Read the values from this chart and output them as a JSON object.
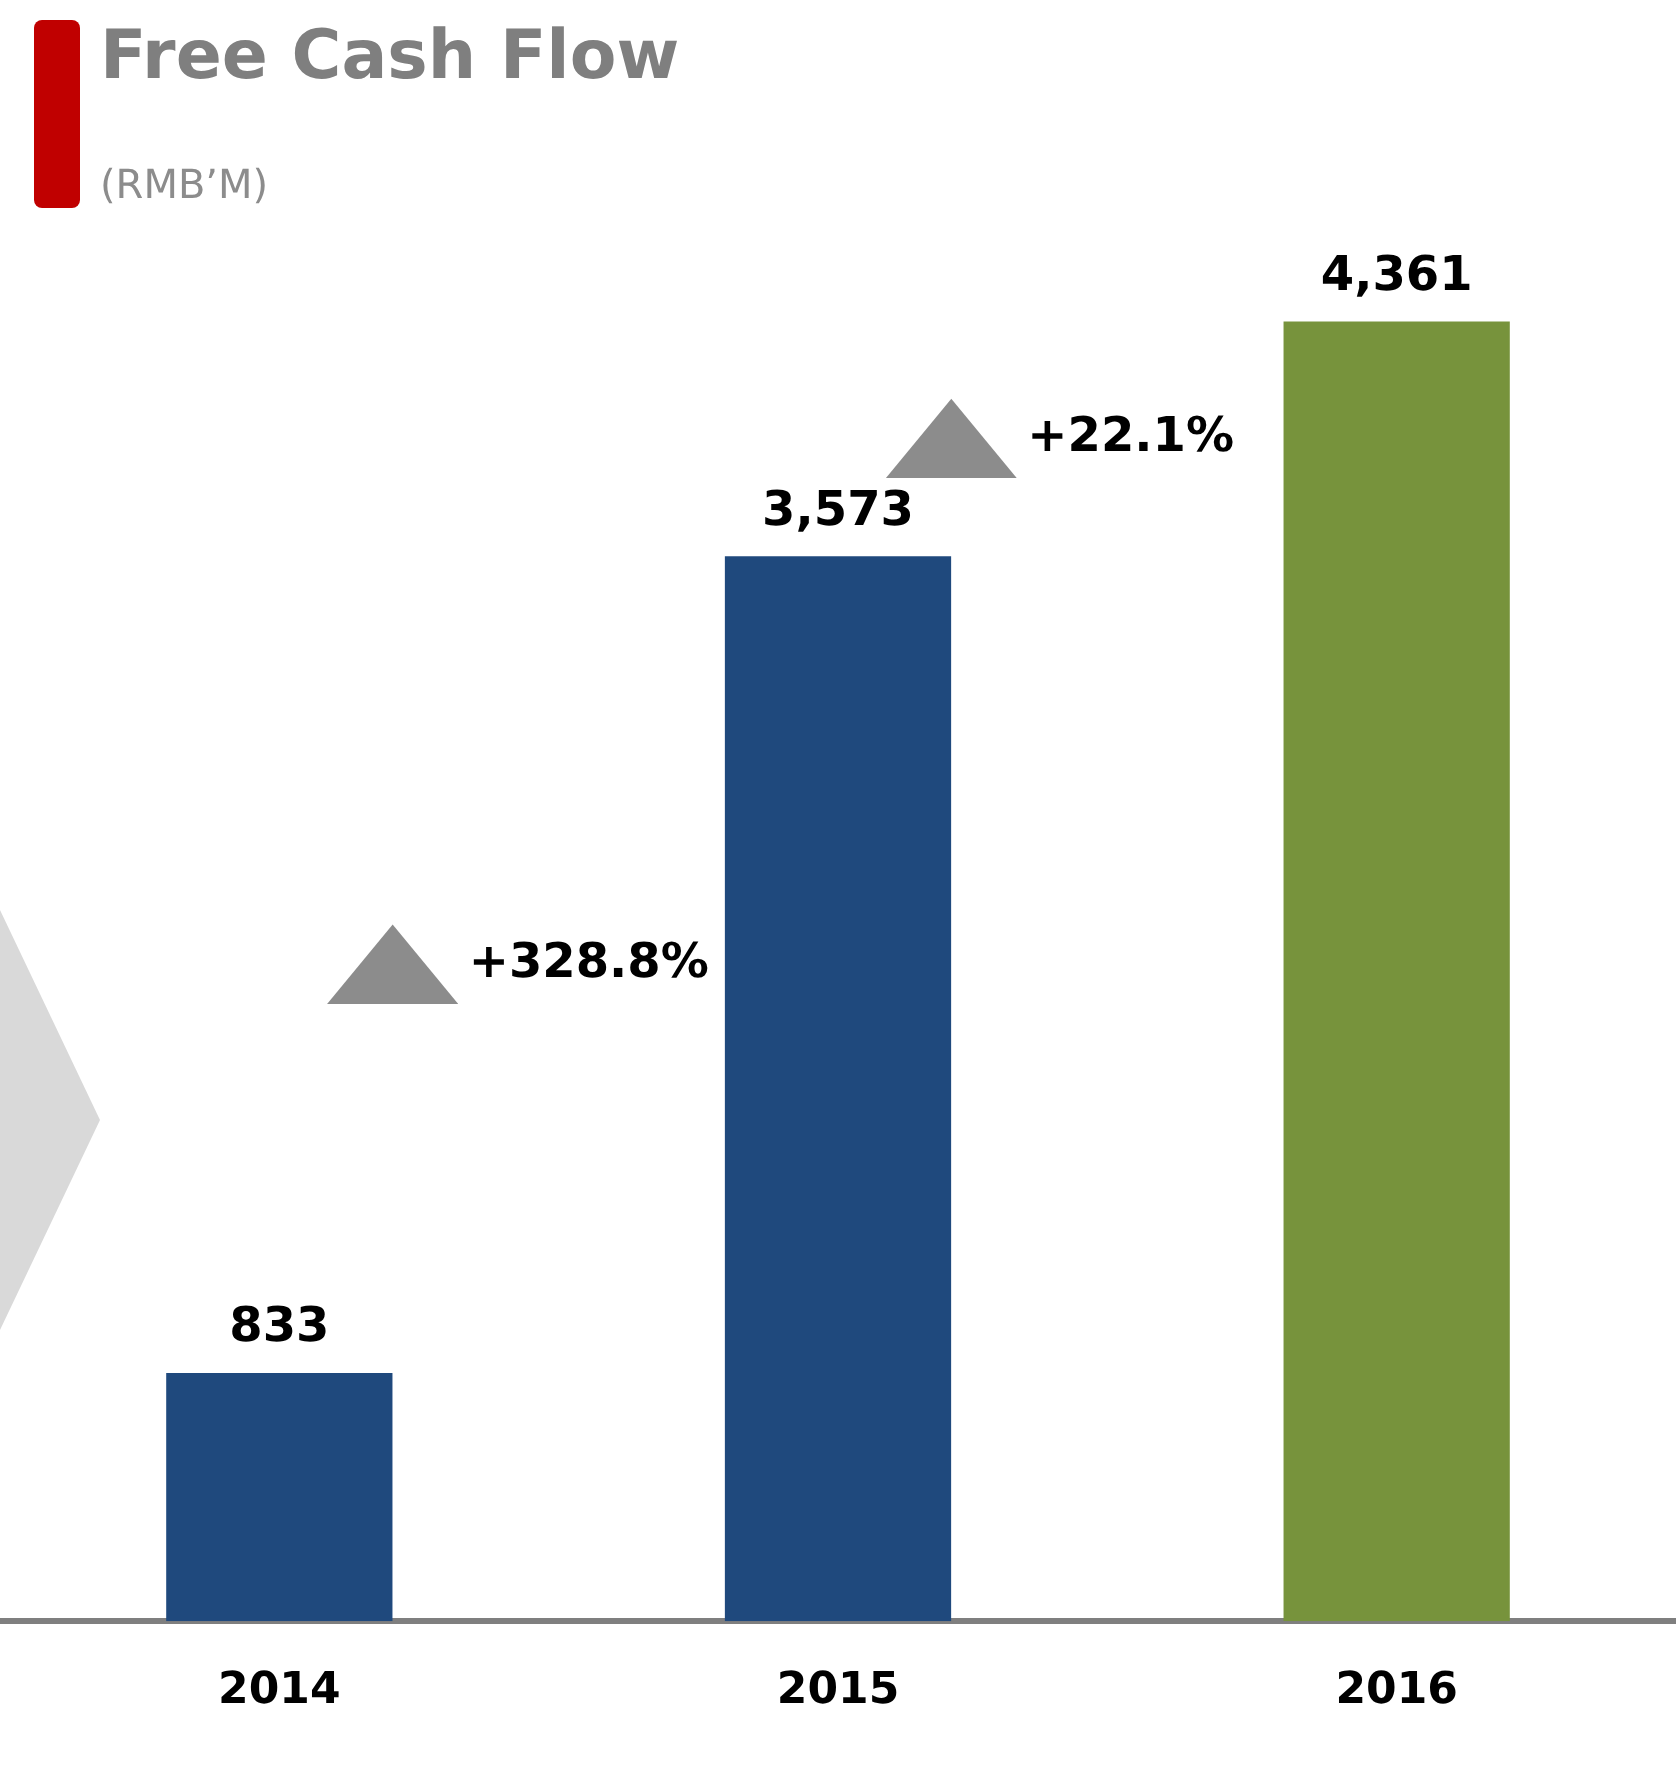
{
  "chart_data": {
    "type": "bar",
    "title": "Free Cash Flow",
    "subtitle": "(RMB’M)",
    "categories": [
      "2014",
      "2015",
      "2016"
    ],
    "values": [
      833,
      3573,
      4361
    ],
    "colors": [
      "#1f497d",
      "#1f497d",
      "#77933c"
    ],
    "data_labels": true,
    "value_labels": [
      "833",
      "3,573",
      "4,361"
    ],
    "annotations": [
      "+328.8%",
      "+22.1%"
    ],
    "grid": false,
    "legend": false,
    "tick_labels": "x"
  }
}
